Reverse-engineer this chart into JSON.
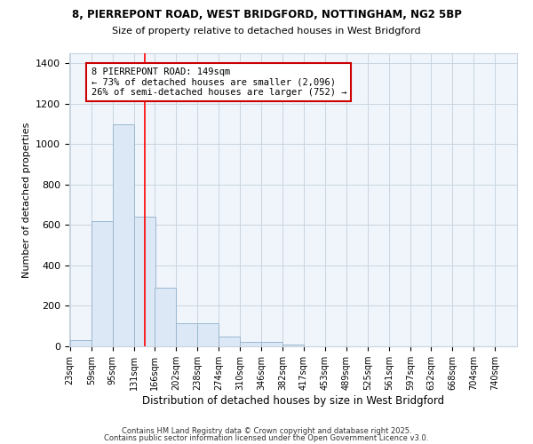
{
  "title_line1": "8, PIERREPONT ROAD, WEST BRIDGFORD, NOTTINGHAM, NG2 5BP",
  "title_line2": "Size of property relative to detached houses in West Bridgford",
  "xlabel": "Distribution of detached houses by size in West Bridgford",
  "ylabel": "Number of detached properties",
  "bins": [
    23,
    59,
    95,
    131,
    166,
    202,
    238,
    274,
    310,
    346,
    382,
    417,
    453,
    489,
    525,
    561,
    597,
    632,
    668,
    704,
    740
  ],
  "counts": [
    30,
    620,
    1100,
    640,
    290,
    115,
    115,
    50,
    20,
    20,
    10,
    0,
    0,
    0,
    0,
    0,
    0,
    0,
    0,
    0
  ],
  "bar_color": "#dce8f5",
  "bar_edge_color": "#9ab8d0",
  "grid_color": "#c8d4e0",
  "bg_color": "#ffffff",
  "plot_bg_color": "#f0f5fc",
  "red_line_x": 149,
  "annotation_line1": "8 PIERREPONT ROAD: 149sqm",
  "annotation_line2": "← 73% of detached houses are smaller (2,096)",
  "annotation_line3": "26% of semi-detached houses are larger (752) →",
  "annotation_box_color": "#ffffff",
  "annotation_border_color": "#cc0000",
  "footnote1": "Contains HM Land Registry data © Crown copyright and database right 2025.",
  "footnote2": "Contains public sector information licensed under the Open Government Licence v3.0.",
  "ylim": [
    0,
    1450
  ],
  "yticks": [
    0,
    200,
    400,
    600,
    800,
    1000,
    1200,
    1400
  ]
}
